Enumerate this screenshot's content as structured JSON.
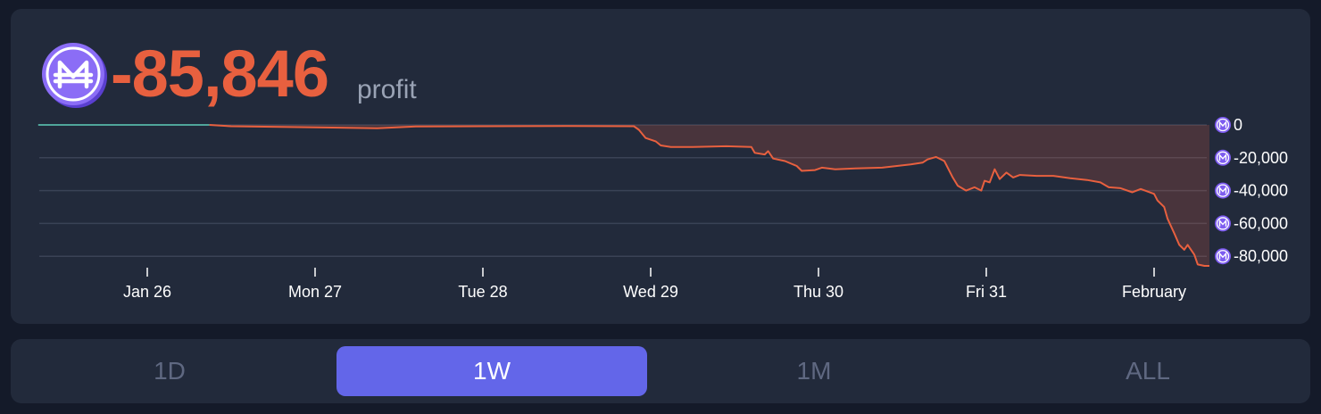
{
  "header": {
    "profit_value": "-85,846",
    "profit_label": "profit",
    "profit_color": "#e8603f",
    "coin_icon": "mana-coin-icon",
    "coin_color": "#7d5cf0"
  },
  "tabs": [
    {
      "label": "1D",
      "active": false
    },
    {
      "label": "1W",
      "active": true
    },
    {
      "label": "1M",
      "active": false
    },
    {
      "label": "ALL",
      "active": false
    }
  ],
  "chart_data": {
    "type": "area",
    "title": "",
    "xlabel": "",
    "ylabel": "",
    "y_ticks": [
      "0",
      "-20,000",
      "-40,000",
      "-60,000",
      "-80,000"
    ],
    "x_ticks": [
      {
        "label": "Jan 26",
        "day": 0
      },
      {
        "label": "Mon 27",
        "day": 1
      },
      {
        "label": "Tue 28",
        "day": 2
      },
      {
        "label": "Wed 29",
        "day": 3
      },
      {
        "label": "Thu 30",
        "day": 4
      },
      {
        "label": "Fri 31",
        "day": 5
      },
      {
        "label": "February",
        "day": 6
      }
    ],
    "ylim": [
      -85846,
      0
    ],
    "grid": true,
    "colors": {
      "positive": "#4fa59a",
      "negative": "#e8603f",
      "fill": "rgba(232,96,63,0.2)"
    },
    "series": [
      {
        "points": [
          [
            -0.65,
            0
          ],
          [
            -0.3,
            0
          ],
          [
            0.37,
            0
          ],
          [
            0.5,
            -800
          ],
          [
            1.0,
            -1500
          ],
          [
            1.37,
            -2000
          ],
          [
            1.6,
            -1000
          ],
          [
            2.0,
            -800
          ],
          [
            2.5,
            -700
          ],
          [
            2.9,
            -800
          ],
          [
            2.93,
            -3000
          ],
          [
            2.97,
            -8000
          ],
          [
            3.03,
            -10000
          ],
          [
            3.06,
            -12500
          ],
          [
            3.12,
            -13500
          ],
          [
            3.25,
            -13500
          ],
          [
            3.45,
            -13000
          ],
          [
            3.6,
            -13500
          ],
          [
            3.62,
            -17000
          ],
          [
            3.68,
            -18000
          ],
          [
            3.7,
            -16000
          ],
          [
            3.73,
            -20500
          ],
          [
            3.8,
            -22000
          ],
          [
            3.87,
            -25000
          ],
          [
            3.9,
            -28000
          ],
          [
            3.98,
            -27500
          ],
          [
            4.02,
            -26000
          ],
          [
            4.1,
            -27000
          ],
          [
            4.22,
            -26500
          ],
          [
            4.38,
            -26000
          ],
          [
            4.55,
            -24000
          ],
          [
            4.62,
            -23000
          ],
          [
            4.65,
            -21000
          ],
          [
            4.7,
            -19500
          ],
          [
            4.75,
            -22000
          ],
          [
            4.8,
            -32000
          ],
          [
            4.83,
            -37000
          ],
          [
            4.88,
            -40000
          ],
          [
            4.93,
            -38000
          ],
          [
            4.97,
            -40000
          ],
          [
            4.99,
            -34000
          ],
          [
            5.02,
            -35000
          ],
          [
            5.05,
            -27000
          ],
          [
            5.08,
            -33000
          ],
          [
            5.12,
            -29000
          ],
          [
            5.16,
            -32000
          ],
          [
            5.2,
            -30500
          ],
          [
            5.3,
            -31000
          ],
          [
            5.4,
            -31000
          ],
          [
            5.5,
            -32500
          ],
          [
            5.6,
            -33500
          ],
          [
            5.68,
            -35000
          ],
          [
            5.73,
            -38000
          ],
          [
            5.8,
            -38500
          ],
          [
            5.87,
            -41000
          ],
          [
            5.92,
            -39000
          ],
          [
            6.0,
            -42000
          ],
          [
            6.02,
            -46000
          ],
          [
            6.06,
            -50000
          ],
          [
            6.08,
            -57000
          ],
          [
            6.12,
            -66000
          ],
          [
            6.15,
            -73000
          ],
          [
            6.18,
            -76000
          ],
          [
            6.2,
            -73000
          ],
          [
            6.24,
            -79000
          ],
          [
            6.26,
            -85000
          ],
          [
            6.3,
            -85846
          ],
          [
            6.33,
            -85846
          ]
        ]
      }
    ]
  }
}
